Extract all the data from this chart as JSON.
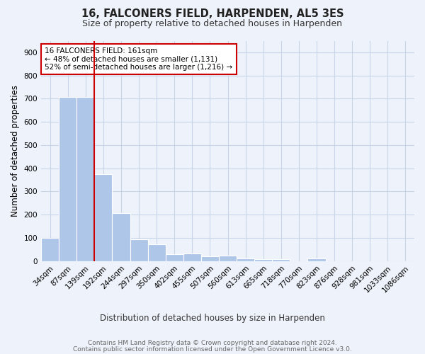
{
  "title": "16, FALCONERS FIELD, HARPENDEN, AL5 3ES",
  "subtitle": "Size of property relative to detached houses in Harpenden",
  "xlabel": "Distribution of detached houses by size in Harpenden",
  "ylabel": "Number of detached properties",
  "footnote1": "Contains HM Land Registry data © Crown copyright and database right 2024.",
  "footnote2": "Contains public sector information licensed under the Open Government Licence v3.0.",
  "categories": [
    "34sqm",
    "87sqm",
    "139sqm",
    "192sqm",
    "244sqm",
    "297sqm",
    "350sqm",
    "402sqm",
    "455sqm",
    "507sqm",
    "560sqm",
    "613sqm",
    "665sqm",
    "718sqm",
    "770sqm",
    "823sqm",
    "876sqm",
    "928sqm",
    "981sqm",
    "1033sqm",
    "1086sqm"
  ],
  "values": [
    100,
    707,
    707,
    375,
    207,
    95,
    72,
    29,
    32,
    21,
    22,
    11,
    8,
    8,
    0,
    10,
    0,
    0,
    0,
    0,
    0
  ],
  "bar_color": "#aec6e8",
  "bar_edge_color": "#ffffff",
  "grid_color": "#c8d4e8",
  "background_color": "#eef2fa",
  "vline_x_index": 2.5,
  "vline_color": "#cc0000",
  "annotation_text": "16 FALCONERS FIELD: 161sqm\n← 48% of detached houses are smaller (1,131)\n52% of semi-detached houses are larger (1,216) →",
  "annotation_box_facecolor": "#ffffff",
  "annotation_box_edgecolor": "#cc0000",
  "ylim": [
    0,
    950
  ],
  "yticks": [
    0,
    100,
    200,
    300,
    400,
    500,
    600,
    700,
    800,
    900
  ]
}
